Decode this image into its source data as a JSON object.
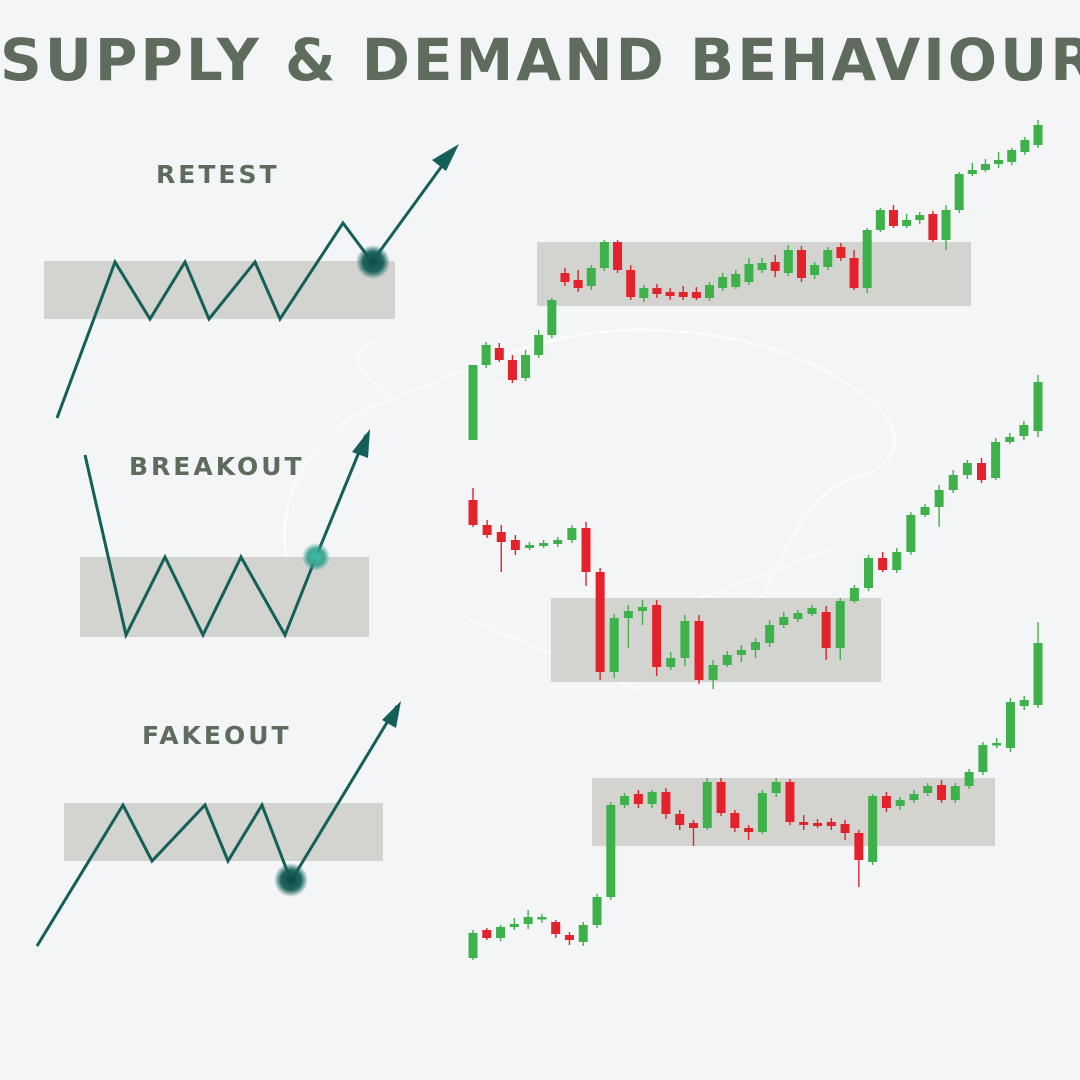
{
  "title": "SUPPLY & DEMAND BEHAVIOUR",
  "colors": {
    "zone": "#d3d3d0",
    "line": "#145f58",
    "bull_candle": "#3fb14a",
    "bear_candle": "#e3222c",
    "text": "#5e6b5d",
    "background": "#f3f5f7"
  },
  "patterns": [
    {
      "id": "retest",
      "label": "RETEST"
    },
    {
      "id": "breakout",
      "label": "BREAKOUT"
    },
    {
      "id": "fakeout",
      "label": "FAKEOUT"
    }
  ],
  "candles": {
    "retest": [
      [
        "up",
        440,
        365,
        440,
        365
      ],
      [
        "up",
        365,
        345,
        368,
        342
      ],
      [
        "down",
        348,
        360,
        362,
        343
      ],
      [
        "down",
        360,
        380,
        383,
        355
      ],
      [
        "up",
        378,
        355,
        381,
        350
      ],
      [
        "up",
        355,
        335,
        358,
        330
      ],
      [
        "up",
        335,
        300,
        338,
        298
      ],
      [
        "down",
        273,
        282,
        286,
        268
      ],
      [
        "down",
        280,
        288,
        292,
        270
      ],
      [
        "up",
        286,
        268,
        290,
        265
      ],
      [
        "up",
        268,
        242,
        271,
        240
      ],
      [
        "down",
        242,
        270,
        273,
        240
      ],
      [
        "down",
        270,
        297,
        300,
        265
      ],
      [
        "up",
        298,
        288,
        302,
        285
      ],
      [
        "down",
        288,
        294,
        298,
        284
      ],
      [
        "down",
        292,
        296,
        300,
        288
      ],
      [
        "down",
        292,
        297,
        300,
        286
      ],
      [
        "down",
        292,
        298,
        300,
        287
      ],
      [
        "up",
        298,
        285,
        301,
        282
      ],
      [
        "up",
        288,
        277,
        291,
        273
      ],
      [
        "up",
        287,
        274,
        289,
        270
      ],
      [
        "up",
        282,
        264,
        285,
        258
      ],
      [
        "up",
        270,
        263,
        273,
        258
      ],
      [
        "down",
        262,
        271,
        277,
        255
      ],
      [
        "up",
        273,
        250,
        276,
        245
      ],
      [
        "down",
        250,
        278,
        282,
        246
      ],
      [
        "up",
        275,
        265,
        279,
        262
      ],
      [
        "up",
        267,
        250,
        270,
        247
      ],
      [
        "down",
        247,
        258,
        261,
        243
      ],
      [
        "down",
        258,
        288,
        290,
        250
      ],
      [
        "up",
        288,
        230,
        293,
        228
      ],
      [
        "up",
        230,
        210,
        232,
        208
      ],
      [
        "down",
        210,
        226,
        228,
        205
      ],
      [
        "up",
        226,
        220,
        228,
        214
      ],
      [
        "up",
        220,
        215,
        224,
        212
      ],
      [
        "down",
        214,
        240,
        242,
        211
      ],
      [
        "up",
        240,
        210,
        250,
        205
      ],
      [
        "up",
        210,
        174,
        213,
        172
      ],
      [
        "up",
        174,
        170,
        176,
        163
      ],
      [
        "up",
        170,
        164,
        172,
        159
      ],
      [
        "up",
        164,
        160,
        168,
        152
      ],
      [
        "up",
        162,
        150,
        165,
        148
      ],
      [
        "up",
        152,
        140,
        155,
        137
      ],
      [
        "up",
        145,
        125,
        148,
        120
      ]
    ],
    "breakout": [
      [
        "down",
        500,
        525,
        527,
        488
      ],
      [
        "down",
        525,
        535,
        538,
        520
      ],
      [
        "down",
        532,
        542,
        572,
        525
      ],
      [
        "down",
        540,
        550,
        555,
        535
      ],
      [
        "up",
        548,
        545,
        550,
        542
      ],
      [
        "up",
        546,
        543,
        548,
        540
      ],
      [
        "up",
        544,
        540,
        547,
        537
      ],
      [
        "up",
        540,
        528,
        543,
        525
      ],
      [
        "down",
        528,
        572,
        586,
        522
      ],
      [
        "down",
        572,
        672,
        680,
        568
      ],
      [
        "up",
        672,
        618,
        678,
        614
      ],
      [
        "up",
        618,
        611,
        648,
        605
      ],
      [
        "up",
        611,
        607,
        625,
        600
      ],
      [
        "down",
        605,
        667,
        676,
        600
      ],
      [
        "up",
        667,
        658,
        670,
        652
      ],
      [
        "up",
        658,
        621,
        666,
        615
      ],
      [
        "down",
        621,
        680,
        684,
        615
      ],
      [
        "up",
        680,
        665,
        689,
        660
      ],
      [
        "up",
        665,
        655,
        667,
        651
      ],
      [
        "up",
        655,
        650,
        662,
        645
      ],
      [
        "up",
        650,
        642,
        658,
        638
      ],
      [
        "up",
        643,
        625,
        647,
        620
      ],
      [
        "up",
        625,
        617,
        628,
        612
      ],
      [
        "up",
        619,
        613,
        622,
        610
      ],
      [
        "up",
        614,
        608,
        616,
        605
      ],
      [
        "down",
        612,
        648,
        660,
        606
      ],
      [
        "up",
        648,
        601,
        660,
        598
      ],
      [
        "up",
        601,
        588,
        603,
        585
      ],
      [
        "up",
        588,
        558,
        591,
        555
      ],
      [
        "down",
        558,
        570,
        572,
        552
      ],
      [
        "up",
        570,
        552,
        573,
        548
      ],
      [
        "up",
        552,
        515,
        555,
        512
      ],
      [
        "up",
        515,
        507,
        517,
        504
      ],
      [
        "up",
        507,
        490,
        527,
        485
      ],
      [
        "up",
        490,
        475,
        493,
        470
      ],
      [
        "up",
        475,
        463,
        479,
        460
      ],
      [
        "down",
        463,
        480,
        483,
        458
      ],
      [
        "up",
        478,
        442,
        480,
        438
      ],
      [
        "up",
        442,
        437,
        444,
        433
      ],
      [
        "up",
        436,
        425,
        440,
        421
      ],
      [
        "up",
        431,
        382,
        437,
        375
      ]
    ],
    "fakeout": [
      [
        "up",
        958,
        933,
        960,
        930
      ],
      [
        "down",
        930,
        938,
        940,
        928
      ],
      [
        "up",
        938,
        927,
        941,
        925
      ],
      [
        "up",
        927,
        924,
        930,
        918
      ],
      [
        "up",
        924,
        917,
        929,
        910
      ],
      [
        "up",
        917,
        918,
        923,
        914
      ],
      [
        "down",
        922,
        934,
        938,
        920
      ],
      [
        "down",
        935,
        940,
        945,
        932
      ],
      [
        "up",
        942,
        925,
        946,
        922
      ],
      [
        "up",
        925,
        897,
        928,
        894
      ],
      [
        "up",
        897,
        805,
        900,
        802
      ],
      [
        "up",
        805,
        796,
        808,
        793
      ],
      [
        "down",
        794,
        804,
        808,
        790
      ],
      [
        "up",
        804,
        792,
        808,
        790
      ],
      [
        "down",
        792,
        814,
        819,
        788
      ],
      [
        "down",
        814,
        825,
        830,
        810
      ],
      [
        "down",
        823,
        828,
        846,
        820
      ],
      [
        "up",
        828,
        782,
        830,
        778
      ],
      [
        "down",
        782,
        813,
        816,
        778
      ],
      [
        "down",
        813,
        828,
        832,
        810
      ],
      [
        "down",
        828,
        832,
        840,
        825
      ],
      [
        "up",
        832,
        793,
        834,
        790
      ],
      [
        "up",
        793,
        782,
        797,
        778
      ],
      [
        "down",
        782,
        822,
        825,
        779
      ],
      [
        "down",
        822,
        825,
        830,
        815
      ],
      [
        "down",
        823,
        826,
        828,
        819
      ],
      [
        "down",
        822,
        826,
        830,
        818
      ],
      [
        "down",
        824,
        833,
        840,
        820
      ],
      [
        "down",
        833,
        860,
        887,
        830
      ],
      [
        "up",
        862,
        796,
        865,
        794
      ],
      [
        "down",
        796,
        808,
        812,
        792
      ],
      [
        "up",
        806,
        800,
        810,
        797
      ],
      [
        "up",
        800,
        794,
        803,
        790
      ],
      [
        "up",
        793,
        786,
        796,
        783
      ],
      [
        "down",
        785,
        800,
        803,
        780
      ],
      [
        "up",
        800,
        786,
        803,
        783
      ],
      [
        "up",
        786,
        772,
        789,
        769
      ],
      [
        "up",
        772,
        745,
        775,
        742
      ],
      [
        "up",
        745,
        743,
        748,
        738
      ],
      [
        "up",
        748,
        702,
        752,
        698
      ],
      [
        "up",
        706,
        700,
        710,
        696
      ],
      [
        "up",
        705,
        643,
        708,
        622
      ]
    ]
  }
}
